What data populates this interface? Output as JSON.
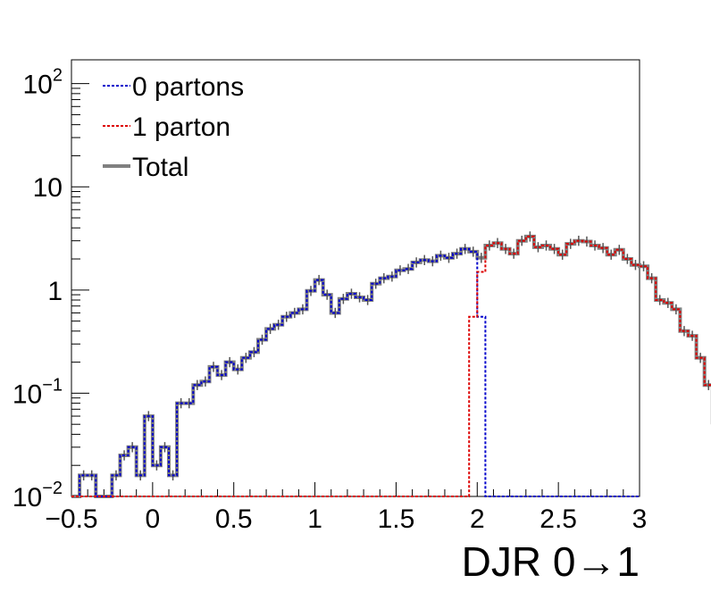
{
  "chart_data": {
    "type": "line",
    "style": "step-histogram",
    "xlabel": "DJR 0→1",
    "xlim": [
      -0.5,
      3
    ],
    "ylim": [
      0.01,
      170
    ],
    "yscale": "log",
    "x_ticks": [
      "−0.5",
      "0",
      "0.5",
      "1",
      "1.5",
      "2",
      "2.5",
      "3"
    ],
    "y_ticks": [
      {
        "base": "10",
        "exp": "−2"
      },
      {
        "base": "10",
        "exp": "−1"
      },
      {
        "base": "1",
        "exp": ""
      },
      {
        "base": "10",
        "exp": ""
      },
      {
        "base": "10",
        "exp": "2"
      }
    ],
    "legend": {
      "position": "top-left",
      "entries": [
        "0 partons",
        "1 parton",
        "Total"
      ]
    },
    "bin_width": 0.05,
    "bin_start": -0.5,
    "series": [
      {
        "name": "0 partons",
        "color": "#0000cc",
        "values": [
          0,
          0.016,
          0.016,
          0,
          0,
          0.016,
          0.025,
          0.03,
          0.016,
          0.06,
          0.02,
          0.03,
          0.016,
          0.08,
          0.08,
          0.12,
          0.13,
          0.18,
          0.15,
          0.2,
          0.17,
          0.22,
          0.25,
          0.33,
          0.42,
          0.46,
          0.55,
          0.6,
          0.65,
          0.98,
          1.25,
          0.9,
          0.6,
          0.82,
          0.92,
          0.85,
          0.8,
          1.15,
          1.3,
          1.35,
          1.55,
          1.6,
          1.85,
          1.95,
          1.9,
          2.15,
          2.05,
          2.25,
          2.5,
          2.35,
          0.55,
          0.01,
          0.01,
          0.01,
          0.01,
          0.01,
          0.01,
          0.01,
          0.01,
          0.01,
          0.01,
          0.01,
          0.01,
          0.01,
          0.01,
          0.01,
          0.01,
          0.01,
          0.01,
          0.01
        ]
      },
      {
        "name": "1 parton",
        "color": "#dd0000",
        "values": [
          0.01,
          0.01,
          0.01,
          0.01,
          0.01,
          0.01,
          0.01,
          0.01,
          0.01,
          0.01,
          0.01,
          0.01,
          0.01,
          0.01,
          0.01,
          0.01,
          0.01,
          0.01,
          0.01,
          0.01,
          0.01,
          0.01,
          0.01,
          0.01,
          0.01,
          0.01,
          0.01,
          0.01,
          0.01,
          0.01,
          0.01,
          0.01,
          0.01,
          0.01,
          0.01,
          0.01,
          0.01,
          0.01,
          0.01,
          0.01,
          0.01,
          0.01,
          0.01,
          0.01,
          0.01,
          0.01,
          0.01,
          0.01,
          0.01,
          0.55,
          1.5,
          2.7,
          2.85,
          2.5,
          2.25,
          3.0,
          3.3,
          2.6,
          2.7,
          2.5,
          2.2,
          2.8,
          3.0,
          2.95,
          2.7,
          2.55,
          2.2,
          2.45,
          2.0,
          1.75,
          1.7,
          1.3,
          0.8,
          0.75,
          0.65,
          0.4,
          0.36,
          0.22,
          0.12,
          0.052
        ]
      },
      {
        "name": "Total",
        "color": "#808080",
        "values": [
          0,
          0.016,
          0.016,
          0,
          0,
          0.016,
          0.025,
          0.03,
          0.016,
          0.06,
          0.02,
          0.03,
          0.016,
          0.08,
          0.08,
          0.12,
          0.13,
          0.18,
          0.15,
          0.2,
          0.17,
          0.22,
          0.25,
          0.33,
          0.42,
          0.46,
          0.55,
          0.6,
          0.65,
          0.98,
          1.25,
          0.9,
          0.6,
          0.82,
          0.92,
          0.85,
          0.8,
          1.15,
          1.3,
          1.35,
          1.55,
          1.6,
          1.85,
          1.95,
          1.9,
          2.15,
          2.05,
          2.25,
          2.5,
          2.35,
          2.05,
          2.7,
          2.85,
          2.5,
          2.25,
          3.0,
          3.3,
          2.6,
          2.7,
          2.5,
          2.2,
          2.8,
          3.0,
          2.95,
          2.7,
          2.55,
          2.2,
          2.45,
          2.0,
          1.75,
          1.7,
          1.3,
          0.8,
          0.75,
          0.65,
          0.4,
          0.36,
          0.22,
          0.12,
          0.052
        ]
      }
    ]
  }
}
